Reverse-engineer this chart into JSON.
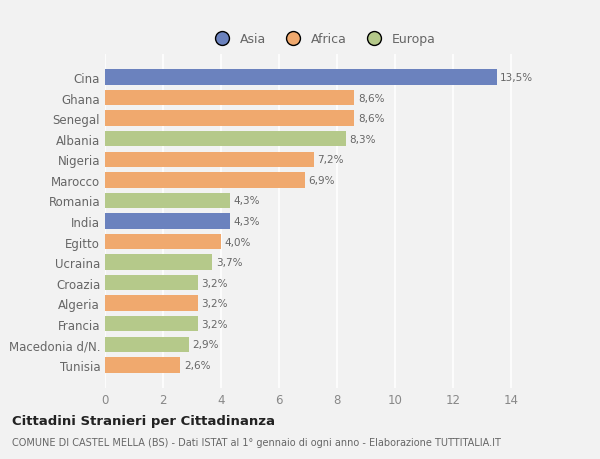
{
  "categories": [
    "Cina",
    "Ghana",
    "Senegal",
    "Albania",
    "Nigeria",
    "Marocco",
    "Romania",
    "India",
    "Egitto",
    "Ucraina",
    "Croazia",
    "Algeria",
    "Francia",
    "Macedonia d/N.",
    "Tunisia"
  ],
  "values": [
    13.5,
    8.6,
    8.6,
    8.3,
    7.2,
    6.9,
    4.3,
    4.3,
    4.0,
    3.7,
    3.2,
    3.2,
    3.2,
    2.9,
    2.6
  ],
  "labels": [
    "13,5%",
    "8,6%",
    "8,6%",
    "8,3%",
    "7,2%",
    "6,9%",
    "4,3%",
    "4,3%",
    "4,0%",
    "3,7%",
    "3,2%",
    "3,2%",
    "3,2%",
    "2,9%",
    "2,6%"
  ],
  "colors": [
    "#6b82be",
    "#f0a96e",
    "#f0a96e",
    "#b5c98a",
    "#f0a96e",
    "#f0a96e",
    "#b5c98a",
    "#6b82be",
    "#f0a96e",
    "#b5c98a",
    "#b5c98a",
    "#f0a96e",
    "#b5c98a",
    "#b5c98a",
    "#f0a96e"
  ],
  "legend": [
    {
      "label": "Asia",
      "color": "#6b82be"
    },
    {
      "label": "Africa",
      "color": "#f0a96e"
    },
    {
      "label": "Europa",
      "color": "#b5c98a"
    }
  ],
  "xlim": [
    0,
    15
  ],
  "xticks": [
    0,
    2,
    4,
    6,
    8,
    10,
    12,
    14
  ],
  "title": "Cittadini Stranieri per Cittadinanza",
  "subtitle": "COMUNE DI CASTEL MELLA (BS) - Dati ISTAT al 1° gennaio di ogni anno - Elaborazione TUTTITALIA.IT",
  "background_color": "#f2f2f2",
  "bar_height": 0.75
}
